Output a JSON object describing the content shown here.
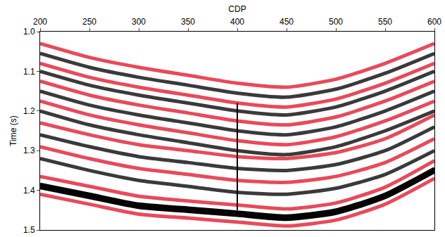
{
  "chart_data": {
    "type": "line",
    "x_label": "CDP",
    "y_label": "Time (s)",
    "xlim": [
      200,
      600
    ],
    "xticks": [
      200,
      250,
      300,
      350,
      400,
      450,
      500,
      550,
      600
    ],
    "ylim": [
      1.5,
      1.0
    ],
    "yticks": [
      {
        "value": 1.0,
        "label": "1.0"
      },
      1.1,
      1.2,
      1.3,
      1.4,
      {
        "value": 1.5,
        "label": "1.5"
      }
    ],
    "grid": false,
    "x": [
      200,
      250,
      300,
      350,
      400,
      450,
      500,
      550,
      600
    ],
    "series": [
      {
        "color": "#e84a5a",
        "values": [
          1.03,
          1.065,
          1.09,
          1.11,
          1.13,
          1.14,
          1.12,
          1.08,
          1.03
        ]
      },
      {
        "color": "#3a3a3a",
        "values": [
          1.055,
          1.09,
          1.115,
          1.135,
          1.155,
          1.165,
          1.145,
          1.105,
          1.055
        ]
      },
      {
        "color": "#e84a5a",
        "values": [
          1.08,
          1.115,
          1.14,
          1.16,
          1.18,
          1.19,
          1.17,
          1.13,
          1.08
        ]
      },
      {
        "color": "#3a3a3a",
        "values": [
          1.1,
          1.135,
          1.16,
          1.18,
          1.2,
          1.21,
          1.19,
          1.15,
          1.1
        ]
      },
      {
        "color": "#e84a5a",
        "values": [
          1.125,
          1.16,
          1.185,
          1.205,
          1.225,
          1.235,
          1.215,
          1.175,
          1.125
        ]
      },
      {
        "color": "#3a3a3a",
        "values": [
          1.15,
          1.185,
          1.21,
          1.23,
          1.25,
          1.26,
          1.24,
          1.2,
          1.15
        ]
      },
      {
        "color": "#e84a5a",
        "values": [
          1.175,
          1.21,
          1.235,
          1.255,
          1.275,
          1.285,
          1.265,
          1.225,
          1.175
        ]
      },
      {
        "color": "#3a3a3a",
        "values": [
          1.2,
          1.235,
          1.26,
          1.28,
          1.3,
          1.31,
          1.29,
          1.25,
          1.2
        ]
      },
      {
        "color": "#e84a5a",
        "values": [
          1.23,
          1.26,
          1.285,
          1.3,
          1.315,
          1.32,
          1.305,
          1.27,
          1.21
        ]
      },
      {
        "color": "#3a3a3a",
        "values": [
          1.26,
          1.29,
          1.315,
          1.33,
          1.345,
          1.35,
          1.335,
          1.3,
          1.24
        ]
      },
      {
        "color": "#e84a5a",
        "values": [
          1.29,
          1.32,
          1.345,
          1.36,
          1.375,
          1.38,
          1.365,
          1.33,
          1.27
        ]
      },
      {
        "color": "#3a3a3a",
        "values": [
          1.32,
          1.35,
          1.375,
          1.39,
          1.405,
          1.41,
          1.395,
          1.36,
          1.3
        ]
      },
      {
        "color": "#e84a5a",
        "values": [
          1.365,
          1.39,
          1.415,
          1.427,
          1.437,
          1.447,
          1.432,
          1.392,
          1.325
        ]
      },
      {
        "color": "#000000",
        "values": [
          1.385,
          1.41,
          1.435,
          1.445,
          1.455,
          1.465,
          1.45,
          1.41,
          1.345
        ]
      },
      {
        "color": "#000000",
        "values": [
          1.393,
          1.418,
          1.443,
          1.453,
          1.463,
          1.473,
          1.458,
          1.418,
          1.353
        ]
      },
      {
        "color": "#e84a5a",
        "values": [
          1.41,
          1.435,
          1.46,
          1.47,
          1.48,
          1.49,
          1.475,
          1.435,
          1.37
        ]
      },
      {
        "color": "#000000",
        "x": [
          400,
          400
        ],
        "values": [
          1.18,
          1.45
        ]
      }
    ]
  }
}
